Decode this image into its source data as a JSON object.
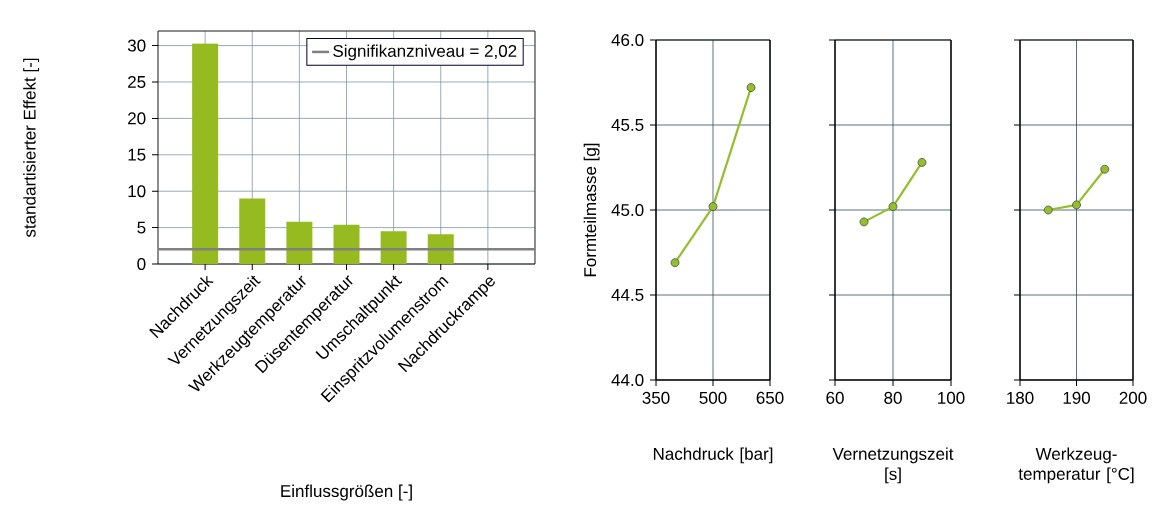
{
  "chart_data": [
    {
      "type": "bar",
      "categories": [
        "Nachdruck",
        "Vernetzungszeit",
        "Werkzeugtemperatur",
        "Düsentemperatur",
        "Umschaltpunkt",
        "Einspritzvolumenstrom",
        "Nachdruckrampe"
      ],
      "values": [
        30.3,
        9.0,
        5.8,
        5.4,
        4.5,
        4.1,
        null
      ],
      "color": "#95bb20",
      "ylim": [
        0,
        32
      ],
      "yticks": [
        0,
        5,
        10,
        15,
        20,
        25,
        30
      ],
      "grid": true,
      "legend": "top right",
      "xlabel": "Einflussgrößen   [-]",
      "ylabel": "standartisierter Effekt   [-]",
      "ref_lines": [
        {
          "axis": "y",
          "value": 2.02,
          "label": "Signifikanzniveau = 2,02",
          "color": "#808080"
        }
      ]
    },
    {
      "type": "line",
      "x": [
        400,
        500,
        600
      ],
      "values": [
        44.69,
        45.02,
        45.72
      ],
      "color": "#92c02a",
      "marker": "circle",
      "xlim": [
        350,
        650
      ],
      "xticks": [
        350,
        500,
        650
      ],
      "ylim": [
        44,
        46
      ],
      "yticks": [
        {
          "value": 44,
          "label": "44.0"
        },
        {
          "value": 44.5,
          "label": "44.5"
        },
        {
          "value": 45,
          "label": "45.0"
        },
        {
          "value": 45.5,
          "label": "45.5"
        },
        {
          "value": 46,
          "label": "46.0"
        }
      ],
      "grid": true,
      "xlabel": "Nachdruck   [bar]",
      "ylabel": "Formteilmasse   [g]"
    },
    {
      "type": "line",
      "x": [
        70,
        80,
        90
      ],
      "values": [
        44.93,
        45.02,
        45.28
      ],
      "color": "#92c02a",
      "marker": "circle",
      "xlim": [
        60,
        100
      ],
      "xticks": [
        60,
        80,
        100
      ],
      "ylim": [
        44,
        46
      ],
      "yticks": [
        44,
        44.5,
        45,
        45.5,
        46
      ],
      "grid": true,
      "tick_labels": "x",
      "xlabel": "Vernetzungszeit   [s]"
    },
    {
      "type": "line",
      "x": [
        185,
        190,
        195
      ],
      "values": [
        45.0,
        45.03,
        45.24
      ],
      "color": "#92c02a",
      "marker": "circle",
      "xlim": [
        180,
        200
      ],
      "xticks": [
        180,
        190,
        200
      ],
      "ylim": [
        44,
        46
      ],
      "yticks": [
        44,
        44.5,
        45,
        45.5,
        46
      ],
      "grid": true,
      "tick_labels": "x",
      "xlabel": "Werkzeug-temperatur   [°C]"
    }
  ]
}
